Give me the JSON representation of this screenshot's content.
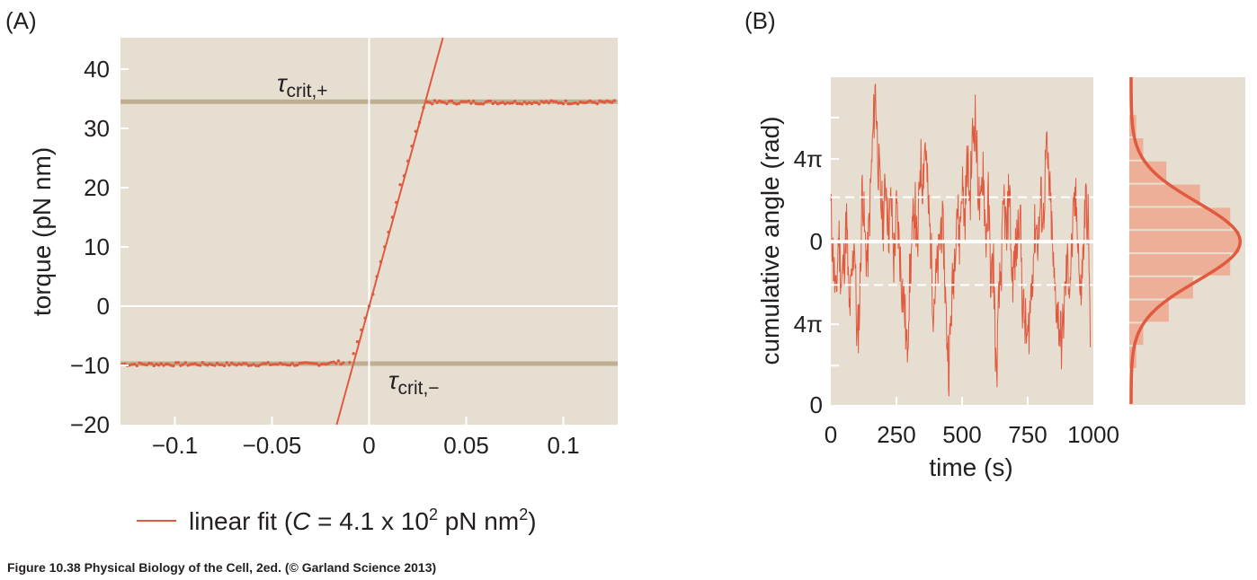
{
  "colors": {
    "plot_bg": "#e6dfd1",
    "accent": "#e05a3f",
    "hist_bar": "#eeaf98",
    "threshold": "#bfae8f",
    "grid": "#ffffff"
  },
  "figure": {
    "caption": "Figure 10.38  Physical Biology of the Cell, 2ed. (© Garland Science 2013)",
    "panel_a_label": "(A)",
    "panel_b_label": "(B)"
  },
  "legend": {
    "prefix": "linear fit (",
    "c_symbol": "C",
    "middle": " = 4.1 x 10",
    "exp1": "2",
    "unit": " pN nm",
    "exp2": "2",
    "suffix": ")"
  },
  "chart_data": [
    {
      "type": "scatter",
      "panel": "A",
      "xlabel": "",
      "ylabel": "torque (pN nm)",
      "xlim": [
        -0.128,
        0.128
      ],
      "ylim": [
        -20,
        45.3
      ],
      "xticks": [
        -0.1,
        -0.05,
        0,
        0.05,
        0.1
      ],
      "xtick_labels": [
        "−0.1",
        "−0.05",
        "0",
        "0.05",
        "0.1"
      ],
      "yticks": [
        -20,
        -10,
        0,
        10,
        20,
        30,
        40
      ],
      "ytick_labels": [
        "−20",
        "−10",
        "0",
        "10",
        "20",
        "30",
        "40"
      ],
      "thresholds": [
        {
          "name": "tau_crit_plus",
          "value": 34.5,
          "label_main": "τ",
          "label_sub": "crit,+"
        },
        {
          "name": "tau_crit_minus",
          "value": -9.7,
          "label_main": "τ",
          "label_sub": "crit,−"
        }
      ],
      "plateau_low": {
        "x_from": -0.127,
        "x_to": -0.012,
        "y": -9.8
      },
      "plateau_high": {
        "x_from": 0.03,
        "x_to": 0.127,
        "y": 34.4
      },
      "rising_points": [
        [
          -0.01,
          -9.5
        ],
        [
          -0.008,
          -8
        ],
        [
          -0.006,
          -6
        ],
        [
          -0.004,
          -4
        ],
        [
          -0.002,
          -2
        ],
        [
          0,
          0
        ],
        [
          0.002,
          2
        ],
        [
          0.004,
          5
        ],
        [
          0.006,
          7.5
        ],
        [
          0.008,
          10
        ],
        [
          0.01,
          12.5
        ],
        [
          0.012,
          15
        ],
        [
          0.014,
          17.5
        ],
        [
          0.016,
          20.5
        ],
        [
          0.018,
          22
        ],
        [
          0.02,
          24.5
        ],
        [
          0.022,
          27
        ],
        [
          0.024,
          29.5
        ],
        [
          0.026,
          31
        ],
        [
          0.028,
          33.5
        ]
      ],
      "fit_line": {
        "x": [
          -0.0167,
          0.038
        ],
        "y": [
          -20,
          45.3
        ],
        "legend": "linear fit"
      }
    },
    {
      "type": "line",
      "panel": "B",
      "xlabel": "time (s)",
      "ylabel": "cumulative angle (rad)",
      "xlim": [
        0,
        1000
      ],
      "ylim_pi_units": [
        -7.9,
        7.95
      ],
      "xticks": [
        0,
        250,
        500,
        750,
        1000
      ],
      "xtick_labels": [
        "0",
        "250",
        "500",
        "750",
        "1000"
      ],
      "yticks_pi_units": [
        4,
        0,
        -4,
        -7.9
      ],
      "ytick_labels": [
        "4π",
        "0",
        "4π",
        "0"
      ],
      "minor_yticks_pi_units": [
        6,
        -6
      ],
      "dashed_lines_pi_units": [
        2.15,
        -2.1
      ],
      "t_step": 10,
      "trace_pi_units": [
        1.5,
        -1,
        -3,
        0.5,
        -2,
        -1,
        1,
        -3.5,
        -2,
        0.5,
        -5,
        -3,
        3,
        0,
        -1,
        2,
        5,
        7.5,
        4,
        2,
        1,
        3,
        0.5,
        2,
        -1,
        1.5,
        0,
        -2,
        -3,
        -5.5,
        -2,
        0,
        2,
        -1,
        4,
        3,
        5,
        2,
        0,
        -3,
        -2,
        -1,
        1,
        0,
        -4,
        -6,
        -3,
        -1,
        2,
        0,
        3,
        1,
        4,
        2,
        5,
        6,
        3,
        1,
        4,
        0,
        2,
        -2,
        -1,
        -6.9,
        -3,
        -1,
        2,
        0,
        3,
        -2,
        -1,
        0,
        2,
        -3,
        -4,
        -5,
        -3,
        -1,
        1,
        0,
        2,
        1,
        4.5,
        3,
        1,
        -2,
        -3,
        -4,
        -5,
        -3,
        -1,
        -2,
        0,
        2,
        1,
        -3,
        -1,
        2,
        1,
        -5.5
      ]
    },
    {
      "type": "bar",
      "panel": "B-histogram",
      "orientation": "horizontal",
      "bin_width_pi_units": 1.12,
      "bin_centers_pi_units": [
        5.6,
        4.48,
        3.36,
        2.24,
        1.12,
        0,
        -1.12,
        -2.24,
        -3.36,
        -4.48,
        -5.6
      ],
      "values": [
        0.06,
        0.12,
        0.32,
        0.61,
        0.87,
        0.95,
        0.87,
        0.55,
        0.34,
        0.12,
        0.06
      ],
      "gaussian_fit": {
        "mean": 0,
        "sigma_pi_units": 1.9,
        "peak": 0.97
      }
    }
  ]
}
